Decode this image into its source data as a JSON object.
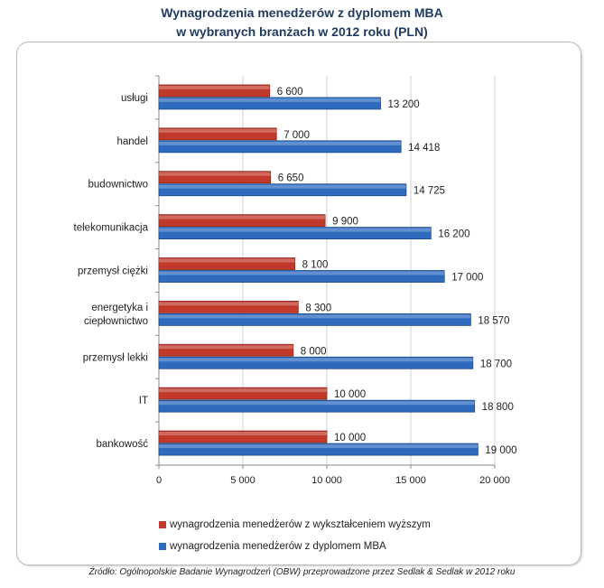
{
  "chart_data": {
    "type": "bar",
    "orientation": "horizontal",
    "title": [
      "Wynagrodzenia menedżerów z dyplomem MBA",
      "w wybranych branżach w 2012 roku (PLN)"
    ],
    "categories": [
      "usługi",
      "handel",
      "budownictwo",
      "telekomunikacja",
      "przemysł ciężki",
      "energetyka i ciepłownictwo",
      "przemysł lekki",
      "IT",
      "bankowość"
    ],
    "category_lines": [
      [
        "usługi"
      ],
      [
        "handel"
      ],
      [
        "budownictwo"
      ],
      [
        "telekomunikacja"
      ],
      [
        "przemysł ciężki"
      ],
      [
        "energetyka i",
        "ciepłownictwo"
      ],
      [
        "przemysł lekki"
      ],
      [
        "IT"
      ],
      [
        "bankowość"
      ]
    ],
    "series": [
      {
        "name": "wynagrodzenia menedżerów z wykształceniem wyższym",
        "color": "#c0392b",
        "values": [
          6600,
          7000,
          6650,
          9900,
          8100,
          8300,
          8000,
          10000,
          10000
        ],
        "labels": [
          "6 600",
          "7 000",
          "6 650",
          "9 900",
          "8 100",
          "8 300",
          "8 000",
          "10 000",
          "10 000"
        ]
      },
      {
        "name": "wynagrodzenia menedżerów z dyplomem MBA",
        "color": "#2e6bbf",
        "values": [
          13200,
          14418,
          14725,
          16200,
          17000,
          18570,
          18700,
          18800,
          19000
        ],
        "labels": [
          "13 200",
          "14 418",
          "14 725",
          "16 200",
          "17 000",
          "18 570",
          "18 700",
          "18 800",
          "19 000"
        ]
      }
    ],
    "xlim": [
      0,
      20000
    ],
    "xticks": [
      0,
      5000,
      10000,
      15000,
      20000
    ],
    "xtick_labels": [
      "0",
      "5 000",
      "10 000",
      "15 000",
      "20 000"
    ],
    "grid": true,
    "legend_position": "bottom"
  },
  "source": "Źródło: Ogólnopolskie Badanie Wynagrodzeń (OBW) przeprowadzone przez Sedlak & Sedlak w 2012 roku"
}
